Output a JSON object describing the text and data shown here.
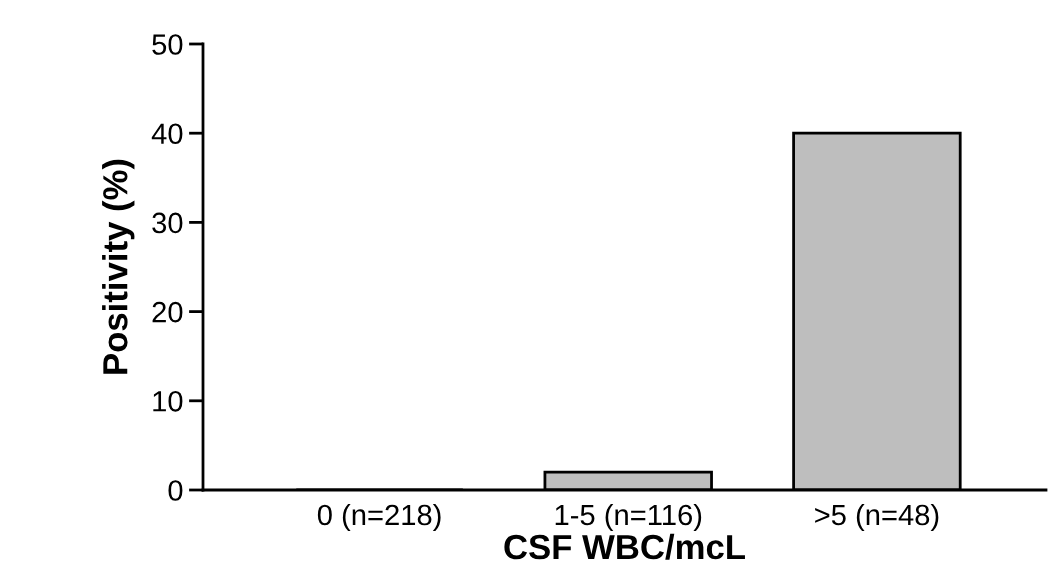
{
  "chart_data": {
    "type": "bar",
    "xlabel": "CSF WBC/mcL",
    "ylabel": "Positivity (%)",
    "categories": [
      "0 (n=218)",
      "1-5 (n=116)",
      ">5 (n=48)"
    ],
    "values": [
      0,
      2,
      40
    ],
    "color": "#bebebe",
    "ylim": [
      0,
      50
    ],
    "yticks": [
      0,
      10,
      20,
      30,
      40,
      50
    ],
    "grid": false
  }
}
